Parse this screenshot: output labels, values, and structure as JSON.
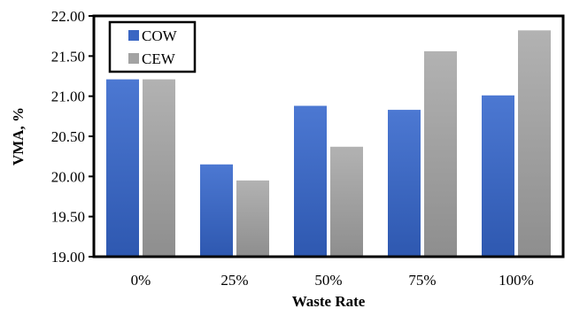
{
  "chart_data": {
    "type": "bar",
    "title": "",
    "xlabel": "Waste Rate",
    "ylabel": "VMA, %",
    "categories": [
      "0%",
      "25%",
      "50%",
      "75%",
      "100%"
    ],
    "series": [
      {
        "name": "COW",
        "values": [
          21.21,
          20.15,
          20.88,
          20.83,
          21.01
        ],
        "color": "#3a66c3"
      },
      {
        "name": "CEW",
        "values": [
          21.21,
          19.95,
          20.37,
          21.56,
          21.82
        ],
        "color": "#a3a3a3"
      }
    ],
    "ylim": [
      19.0,
      22.0
    ],
    "yticks": [
      19.0,
      19.5,
      20.0,
      20.5,
      21.0,
      21.5,
      22.0
    ],
    "ytick_labels": [
      "19.00",
      "19.50",
      "20.00",
      "20.50",
      "21.00",
      "21.50",
      "22.00"
    ],
    "grid": false,
    "legend_position": "top-left"
  }
}
